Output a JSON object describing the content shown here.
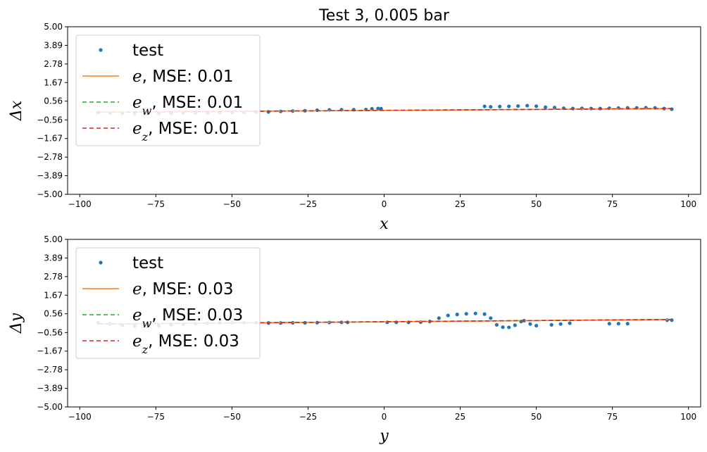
{
  "chart_data": [
    {
      "type": "scatter",
      "title": "Test 3, 0.005 bar",
      "xlabel": "x",
      "ylabel": "Δx",
      "xlim": [
        -104,
        104
      ],
      "ylim": [
        -5,
        5
      ],
      "xticks": [
        -100,
        -75,
        -50,
        -25,
        0,
        25,
        50,
        75,
        100
      ],
      "xtick_labels": [
        "−100",
        "−75",
        "−50",
        "−25",
        "0",
        "25",
        "50",
        "75",
        "100"
      ],
      "yticks": [
        -5.0,
        -3.89,
        -2.78,
        -1.67,
        -0.56,
        0.56,
        1.67,
        2.78,
        3.89,
        5.0
      ],
      "ytick_labels": [
        "−5.00",
        "−3.89",
        "−2.78",
        "−1.67",
        "−0.56",
        "0.56",
        "1.67",
        "2.78",
        "3.89",
        "5.00"
      ],
      "grid": false,
      "legend_position": "upper-left",
      "series": [
        {
          "name": "test",
          "kind": "points",
          "color": "#1f77b4",
          "x": [
            -94,
            -90,
            -86,
            -82,
            -78,
            -74,
            -70,
            -66,
            -62,
            -58,
            -54,
            -50,
            -46,
            -42,
            -38,
            -34,
            -30,
            -26,
            -22,
            -18,
            -14,
            -10,
            -6,
            -4,
            -2,
            -1,
            33,
            35,
            38,
            41,
            44,
            47,
            50,
            53,
            56,
            59,
            62,
            65,
            68,
            71,
            74,
            77,
            80,
            83,
            86,
            89,
            92,
            94.5
          ],
          "y": [
            -0.12,
            -0.14,
            -0.16,
            -0.18,
            -0.18,
            -0.17,
            -0.16,
            -0.15,
            -0.14,
            -0.13,
            -0.12,
            -0.11,
            -0.11,
            -0.09,
            -0.08,
            -0.05,
            -0.03,
            -0.01,
            0.02,
            0.04,
            0.05,
            0.05,
            0.06,
            0.1,
            0.12,
            0.11,
            0.25,
            0.22,
            0.24,
            0.25,
            0.27,
            0.29,
            0.26,
            0.2,
            0.18,
            0.14,
            0.12,
            0.13,
            0.12,
            0.12,
            0.14,
            0.15,
            0.16,
            0.16,
            0.17,
            0.16,
            0.12,
            0.08
          ]
        },
        {
          "name": "e, MSE: 0.01",
          "math": "e",
          "sub": "",
          "rest": ", MSE: 0.01",
          "kind": "line",
          "dash": "",
          "color": "#ff7f0e",
          "x": [
            -94,
            94.5
          ],
          "y": [
            -0.1,
            0.12
          ]
        },
        {
          "name": "e_w, MSE: 0.01",
          "math": "e",
          "sub": "w",
          "rest": ", MSE: 0.01",
          "kind": "line",
          "dash": "6,4",
          "color": "#2ca02c",
          "x": [
            -94,
            94.5
          ],
          "y": [
            -0.1,
            0.12
          ]
        },
        {
          "name": "e_z, MSE: 0.01",
          "math": "e",
          "sub": "z",
          "rest": ", MSE: 0.01",
          "kind": "line",
          "dash": "6,4",
          "color": "#d62728",
          "x": [
            -94,
            94.5
          ],
          "y": [
            -0.1,
            0.12
          ]
        }
      ]
    },
    {
      "type": "scatter",
      "title": "",
      "xlabel": "y",
      "ylabel": "Δy",
      "xlim": [
        -104,
        104
      ],
      "ylim": [
        -5,
        5
      ],
      "xticks": [
        -100,
        -75,
        -50,
        -25,
        0,
        25,
        50,
        75,
        100
      ],
      "xtick_labels": [
        "−100",
        "−75",
        "−50",
        "−25",
        "0",
        "25",
        "50",
        "75",
        "100"
      ],
      "yticks": [
        -5.0,
        -3.89,
        -2.78,
        -1.67,
        -0.56,
        0.56,
        1.67,
        2.78,
        3.89,
        5.0
      ],
      "ytick_labels": [
        "−5.00",
        "−3.89",
        "−2.78",
        "−1.67",
        "−0.56",
        "0.56",
        "1.67",
        "2.78",
        "3.89",
        "5.00"
      ],
      "grid": false,
      "legend_position": "upper-left",
      "series": [
        {
          "name": "test",
          "kind": "points",
          "color": "#1f77b4",
          "x": [
            -94,
            -90,
            -86,
            -82,
            -78,
            -74,
            -70,
            -66,
            -62,
            -58,
            -54,
            -50,
            -46,
            -42,
            -38,
            -34,
            -30,
            -26,
            -22,
            -18,
            -14,
            -12,
            1,
            4,
            8,
            12,
            15,
            18,
            21,
            24,
            27,
            30,
            33,
            35,
            37,
            39,
            41,
            43,
            45,
            46,
            48,
            50,
            55,
            58,
            61,
            74,
            77,
            80,
            93,
            94.5
          ],
          "y": [
            0.02,
            -0.05,
            -0.12,
            -0.18,
            -0.17,
            -0.14,
            -0.1,
            -0.06,
            -0.03,
            0.0,
            0.02,
            0.03,
            0.03,
            0.02,
            0.01,
            0.01,
            0.02,
            0.02,
            0.03,
            0.04,
            0.05,
            0.05,
            0.05,
            0.05,
            0.05,
            0.06,
            0.1,
            0.3,
            0.46,
            0.52,
            0.56,
            0.58,
            0.54,
            0.3,
            -0.1,
            -0.24,
            -0.25,
            -0.12,
            0.1,
            0.15,
            -0.05,
            -0.15,
            -0.1,
            -0.05,
            0.0,
            -0.03,
            -0.03,
            -0.03,
            0.18,
            0.18
          ]
        },
        {
          "name": "e, MSE: 0.03",
          "math": "e",
          "sub": "",
          "rest": ", MSE: 0.03",
          "kind": "line",
          "dash": "",
          "color": "#ff7f0e",
          "x": [
            -94,
            94.5
          ],
          "y": [
            -0.05,
            0.22
          ]
        },
        {
          "name": "e_w, MSE: 0.03",
          "math": "e",
          "sub": "w",
          "rest": ", MSE: 0.03",
          "kind": "line",
          "dash": "6,4",
          "color": "#2ca02c",
          "x": [
            -94,
            94.5
          ],
          "y": [
            -0.05,
            0.22
          ]
        },
        {
          "name": "e_z, MSE: 0.03",
          "math": "e",
          "sub": "z",
          "rest": ", MSE: 0.03",
          "kind": "line",
          "dash": "6,4",
          "color": "#d62728",
          "x": [
            -94,
            94.5
          ],
          "y": [
            -0.05,
            0.22
          ]
        }
      ]
    }
  ]
}
